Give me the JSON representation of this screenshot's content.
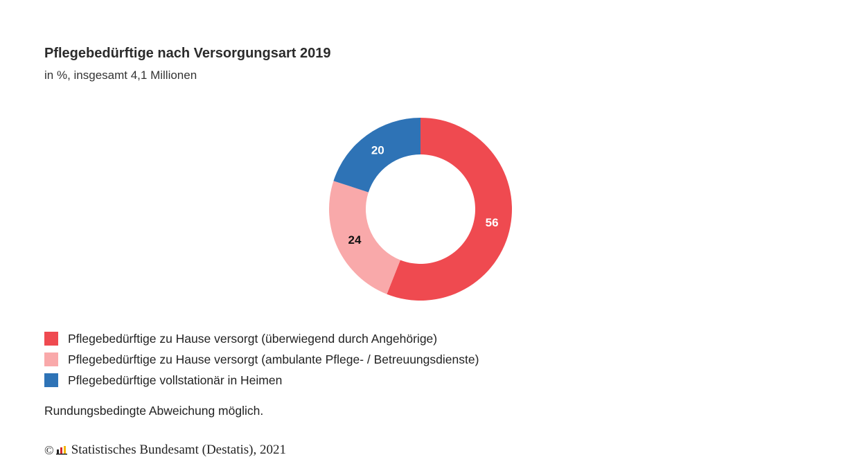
{
  "title": "Pflegebedürftige nach Versorgungsart 2019",
  "subtitle": "in %, insgesamt 4,1 Millionen",
  "chart_data": {
    "type": "pie",
    "variant": "donut",
    "title": "Pflegebedürftige nach Versorgungsart 2019",
    "subtitle": "in %, insgesamt 4,1 Millionen",
    "start": "12 o'clock, clockwise",
    "slices": [
      {
        "label": "Pflegebedürftige zu Hause versorgt (überwiegend durch Angehörige)",
        "value": 56,
        "display": "56",
        "color": "#ef4a50",
        "label_color": "#ffffff"
      },
      {
        "label": "Pflegebedürftige zu Hause versorgt (ambulante Pflege- / Betreuungsdienste)",
        "value": 24,
        "display": "24",
        "color": "#f9a9aa",
        "label_color": "#111111"
      },
      {
        "label": "Pflegebedürftige vollstationär in Heimen",
        "value": 20,
        "display": "20",
        "color": "#2e73b6",
        "label_color": "#ffffff"
      }
    ],
    "legend_position": "bottom-left"
  },
  "note": "Rundungsbedingte Abweichung möglich.",
  "copyright": {
    "symbol": "©",
    "text": "Statistisches Bundesamt (Destatis), 2021",
    "logo_icon": "destatis-logo-icon"
  }
}
